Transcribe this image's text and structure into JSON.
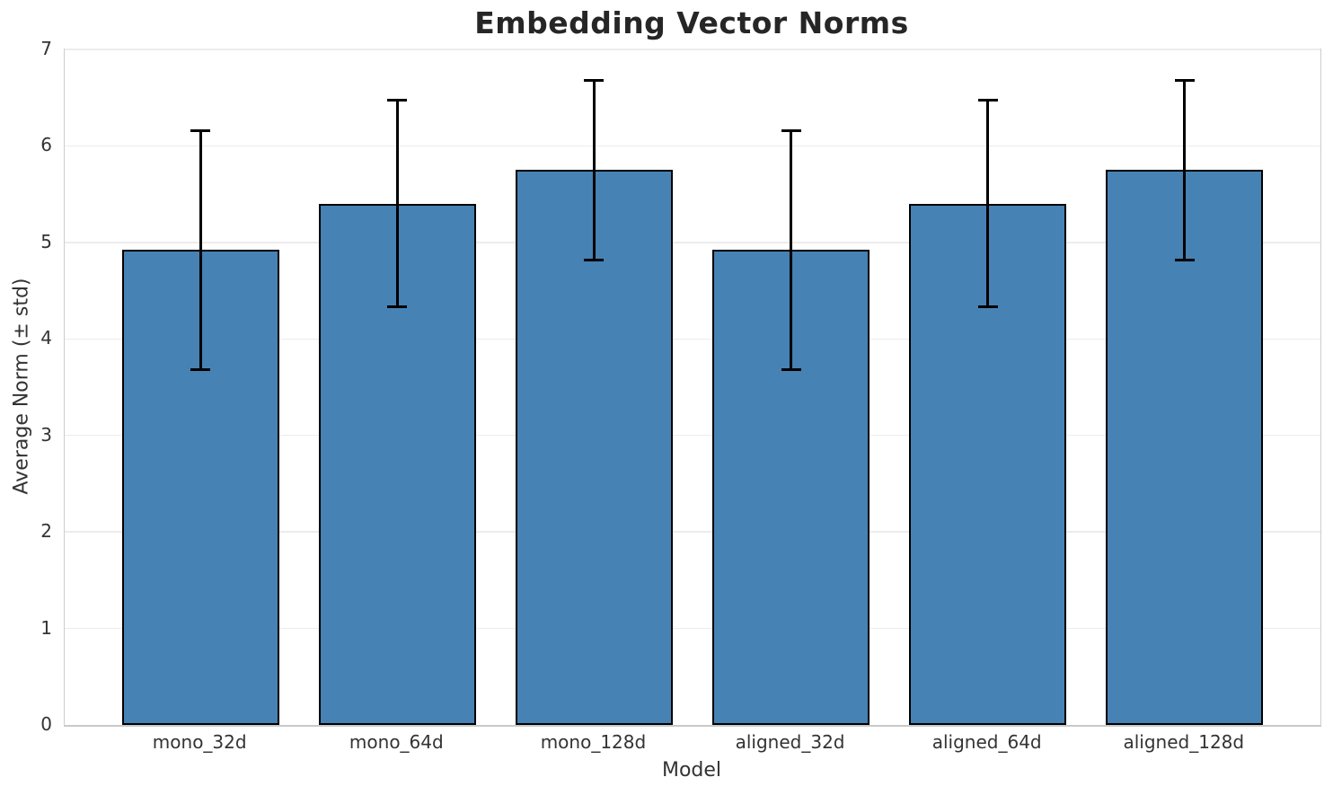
{
  "chart_data": {
    "type": "bar",
    "title": "Embedding Vector Norms",
    "xlabel": "Model",
    "ylabel": "Average Norm (± std)",
    "categories": [
      "mono_32d",
      "mono_64d",
      "mono_128d",
      "aligned_32d",
      "aligned_64d",
      "aligned_128d"
    ],
    "series": [
      {
        "name": "Average Norm",
        "values": [
          4.92,
          5.4,
          5.75,
          4.92,
          5.4,
          5.75
        ],
        "errors": [
          1.24,
          1.07,
          0.93,
          1.24,
          1.07,
          0.93
        ]
      }
    ],
    "ylim": [
      0,
      7
    ],
    "yticks": [
      0,
      1,
      2,
      3,
      4,
      5,
      6,
      7
    ],
    "grid": "horizontal",
    "legend": null,
    "bar_width_fraction": 0.8,
    "colors": {
      "bar_fill": "#4682B4",
      "bar_edge": "#000000",
      "error_bar": "#000000",
      "gridline": "#ececec",
      "spine": "#cdcdcd",
      "tick_label": "#333333",
      "title": "#262626"
    }
  }
}
